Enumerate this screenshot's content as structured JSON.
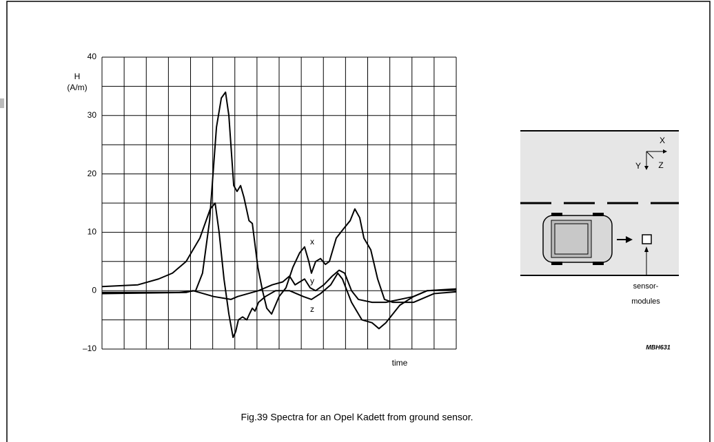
{
  "chart_data": {
    "type": "line",
    "y_label": [
      "H",
      "(A/m)"
    ],
    "x_label": "time",
    "caption": "Fig.39  Spectra for an Opel Kadett from ground sensor.",
    "xlim": [
      0,
      16
    ],
    "ylim": [
      -10,
      40
    ],
    "yticks": [
      {
        "value": -10,
        "label": "–10"
      },
      0,
      10,
      20,
      30,
      40
    ],
    "grid": true,
    "series": [
      {
        "name": "x",
        "color": "#000000",
        "x": [
          0,
          3.49,
          4.23,
          4.54,
          4.86,
          5.17,
          5.39,
          5.58,
          5.73,
          5.95,
          6.1,
          6.26,
          6.41,
          6.64,
          6.79,
          7.04,
          7.25,
          7.44,
          7.66,
          8,
          8.31,
          8.62,
          8.93,
          9.15,
          9.34,
          9.46,
          9.65,
          9.87,
          10.09,
          10.27,
          10.58,
          10.89,
          11.21,
          11.42,
          11.64,
          11.83,
          12.14,
          12.45,
          12.76,
          13.14,
          14.07,
          15,
          16
        ],
        "values": [
          -0.3,
          -0.3,
          0,
          3,
          12,
          28,
          33,
          34,
          30,
          18,
          17,
          18,
          16,
          12,
          11.5,
          4,
          0,
          -3,
          -4,
          -1,
          0.5,
          4,
          6.5,
          7.5,
          5,
          3,
          5,
          5.5,
          4.5,
          5,
          9,
          10.5,
          12,
          14,
          12.5,
          9,
          7,
          2,
          -1.5,
          -2,
          -2,
          -0.5,
          -0.2
        ]
      },
      {
        "name": "y",
        "color": "#000000",
        "x": [
          0,
          3.8,
          4.11,
          4.58,
          5.04,
          5.82,
          6.13,
          6.6,
          7.07,
          7.69,
          8.16,
          8.47,
          8.72,
          8.93,
          9.15,
          9.4,
          9.65,
          10.02,
          10.4,
          10.71,
          10.96,
          11.27,
          11.58,
          12.2,
          12.82,
          13.45,
          14.07,
          14.69,
          16
        ],
        "values": [
          -0.5,
          -0.3,
          0,
          -0.5,
          -1,
          -1.5,
          -1,
          -0.5,
          0,
          1,
          1.5,
          2.5,
          1,
          1.5,
          2,
          0.5,
          0,
          1,
          2.5,
          3.5,
          3,
          0,
          -1.5,
          -2,
          -2,
          -1.5,
          -1,
          0,
          0.2
        ]
      },
      {
        "name": "z",
        "color": "#000000",
        "x": [
          0,
          1.62,
          2.55,
          3.18,
          3.8,
          4.42,
          4.89,
          5.11,
          5.29,
          5.51,
          5.73,
          5.92,
          6.04,
          6.16,
          6.35,
          6.54,
          6.66,
          6.79,
          6.91,
          7.07,
          7.38,
          7.84,
          8.47,
          9.09,
          9.46,
          9.87,
          10.33,
          10.65,
          10.86,
          11.27,
          11.74,
          12.2,
          12.51,
          12.82,
          13.45,
          14.07,
          14.69,
          16
        ],
        "values": [
          0.7,
          1,
          2,
          3,
          5,
          9,
          14,
          15,
          10,
          2,
          -4,
          -8,
          -7,
          -5,
          -4.5,
          -5,
          -4,
          -3,
          -3.5,
          -2,
          -1,
          0,
          0,
          -1,
          -1.5,
          -0.5,
          1,
          3,
          2,
          -2,
          -5,
          -5.5,
          -6.5,
          -5.5,
          -2.5,
          -1,
          0,
          0.3
        ]
      }
    ]
  },
  "diagram": {
    "axes": [
      "X",
      "Y",
      "Z"
    ],
    "sensor_label": [
      "sensor-",
      "modules"
    ],
    "code": "MBH631"
  }
}
